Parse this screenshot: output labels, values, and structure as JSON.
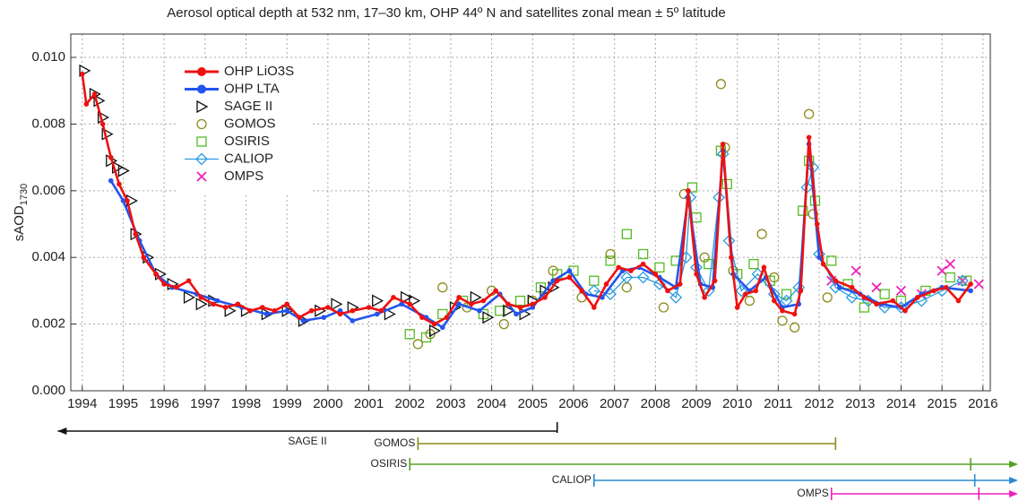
{
  "chart_data": {
    "type": "scatter",
    "title": "Aerosol optical depth at 532 nm, 17–30 km, OHP 44º N and satellites zonal mean ± 5º latitude",
    "ylabel": "sAOD",
    "ylabel_sub": "1730",
    "xlim": [
      1993.72,
      2016.18
    ],
    "ylim": [
      0,
      0.0107
    ],
    "xticks": [
      1994,
      1995,
      1996,
      1997,
      1998,
      1999,
      2000,
      2001,
      2002,
      2003,
      2004,
      2005,
      2006,
      2007,
      2008,
      2009,
      2010,
      2011,
      2012,
      2013,
      2014,
      2015,
      2016
    ],
    "yticks": [
      {
        "value": 0,
        "label": "0.000"
      },
      0.002,
      0.004,
      0.006,
      0.008,
      {
        "value": 0.01,
        "label": "0.010"
      }
    ],
    "grid": true,
    "legend": "upper left",
    "series": [
      {
        "name": "OHP LiO3S",
        "color": "#ee1111",
        "marker": "dot",
        "line": true,
        "x": [
          1994.0,
          1994.1,
          1994.3,
          1994.5,
          1994.7,
          1994.9,
          1995.1,
          1995.3,
          1995.5,
          1995.8,
          1996.0,
          1996.3,
          1996.6,
          1996.9,
          1997.2,
          1997.5,
          1997.8,
          1998.1,
          1998.4,
          1998.7,
          1999.0,
          1999.3,
          1999.6,
          2000.0,
          2000.3,
          2000.6,
          2001.0,
          2001.3,
          2001.6,
          2002.0,
          2002.3,
          2002.6,
          2002.9,
          2003.2,
          2003.5,
          2003.8,
          2004.1,
          2004.4,
          2004.7,
          2005.0,
          2005.3,
          2005.6,
          2005.9,
          2006.2,
          2006.5,
          2006.8,
          2007.1,
          2007.4,
          2007.7,
          2008.0,
          2008.3,
          2008.6,
          2008.8,
          2009.0,
          2009.2,
          2009.45,
          2009.65,
          2009.85,
          2010.0,
          2010.2,
          2010.45,
          2010.65,
          2010.9,
          2011.1,
          2011.4,
          2011.55,
          2011.75,
          2011.95,
          2012.1,
          2012.4,
          2012.8,
          2013.1,
          2013.4,
          2013.8,
          2014.1,
          2014.4,
          2014.8,
          2015.1,
          2015.4,
          2015.7
        ],
        "values": [
          0.0095,
          0.0086,
          0.0089,
          0.008,
          0.007,
          0.0062,
          0.0057,
          0.0047,
          0.004,
          0.0035,
          0.0032,
          0.0031,
          0.0033,
          0.0028,
          0.0026,
          0.0025,
          0.0026,
          0.0024,
          0.0025,
          0.0024,
          0.0026,
          0.0022,
          0.0024,
          0.0025,
          0.0023,
          0.0024,
          0.0025,
          0.0024,
          0.0028,
          0.0026,
          0.0022,
          0.002,
          0.0022,
          0.0028,
          0.0026,
          0.0027,
          0.003,
          0.0026,
          0.0025,
          0.0026,
          0.0028,
          0.0033,
          0.0034,
          0.003,
          0.0025,
          0.0032,
          0.0037,
          0.0036,
          0.0038,
          0.0035,
          0.003,
          0.0032,
          0.006,
          0.0035,
          0.0028,
          0.0033,
          0.0074,
          0.004,
          0.0025,
          0.0029,
          0.003,
          0.0037,
          0.0027,
          0.0024,
          0.0023,
          0.003,
          0.0076,
          0.005,
          0.0038,
          0.0033,
          0.0031,
          0.0028,
          0.0026,
          0.0027,
          0.0024,
          0.0028,
          0.003,
          0.0031,
          0.0027,
          0.0032
        ]
      },
      {
        "name": "OHP LTA",
        "color": "#2255ee",
        "marker": "dot",
        "line": true,
        "x": [
          1994.7,
          1995.0,
          1995.4,
          1995.8,
          1996.2,
          1996.8,
          1997.3,
          1997.9,
          1998.5,
          1999.0,
          1999.4,
          1999.9,
          2000.3,
          2000.6,
          2001.2,
          2001.8,
          2002.4,
          2002.8,
          2003.2,
          2003.7,
          2004.2,
          2004.6,
          2005.0,
          2005.5,
          2005.9,
          2006.3,
          2006.7,
          2007.2,
          2007.6,
          2008.1,
          2008.5,
          2008.8,
          2009.1,
          2009.4,
          2009.65,
          2009.9,
          2010.3,
          2010.7,
          2011.1,
          2011.5,
          2011.75,
          2012.0,
          2012.5,
          2013.0,
          2013.5,
          2014.0,
          2014.5,
          2015.0,
          2015.7
        ],
        "values": [
          0.0063,
          0.0057,
          0.0045,
          0.0035,
          0.0031,
          0.0029,
          0.0027,
          0.0025,
          0.0023,
          0.0024,
          0.0021,
          0.0022,
          0.0024,
          0.0021,
          0.0023,
          0.0026,
          0.0022,
          0.0019,
          0.0026,
          0.0024,
          0.0029,
          0.0023,
          0.0025,
          0.0033,
          0.0036,
          0.0029,
          0.0028,
          0.0036,
          0.0037,
          0.0034,
          0.0031,
          0.0058,
          0.0032,
          0.0031,
          0.0072,
          0.0035,
          0.003,
          0.0034,
          0.0025,
          0.0026,
          0.0074,
          0.004,
          0.0031,
          0.0029,
          0.0026,
          0.0025,
          0.0029,
          0.0031,
          0.003
        ]
      },
      {
        "name": "SAGE II",
        "color": "#111111",
        "marker": "triangle",
        "line": false,
        "x": [
          1994.05,
          1994.3,
          1994.4,
          1994.5,
          1994.6,
          1994.7,
          1994.85,
          1995.0,
          1995.2,
          1995.3,
          1995.6,
          1995.9,
          1996.2,
          1996.6,
          1996.9,
          1997.2,
          1997.6,
          1998.0,
          1998.5,
          1999.0,
          1999.4,
          1999.8,
          2000.2,
          2000.6,
          2001.2,
          2001.5,
          2001.9,
          2002.1,
          2002.6,
          2003.1,
          2003.6,
          2003.9,
          2004.4,
          2004.8,
          2005.0,
          2005.3,
          2005.5
        ],
        "values": [
          0.0096,
          0.0089,
          0.0087,
          0.0082,
          0.0077,
          0.0069,
          0.0067,
          0.0066,
          0.0057,
          0.0047,
          0.004,
          0.0035,
          0.0032,
          0.0028,
          0.0026,
          0.0027,
          0.0024,
          0.0024,
          0.0023,
          0.0024,
          0.0021,
          0.0024,
          0.0026,
          0.0025,
          0.0027,
          0.0023,
          0.0028,
          0.0027,
          0.0018,
          0.0025,
          0.0028,
          0.0022,
          0.0024,
          0.0023,
          0.0027,
          0.003,
          0.0031
        ]
      },
      {
        "name": "GOMOS",
        "color": "#8a8a1a",
        "marker": "circle",
        "line": false,
        "x": [
          2002.2,
          2002.5,
          2002.8,
          2003.4,
          2004.0,
          2004.3,
          2005.0,
          2005.5,
          2006.2,
          2006.9,
          2007.3,
          2008.2,
          2008.7,
          2009.2,
          2009.6,
          2009.7,
          2009.9,
          2010.3,
          2010.6,
          2010.9,
          2011.1,
          2011.4,
          2011.75,
          2011.85,
          2012.2
        ],
        "values": [
          0.0014,
          0.0017,
          0.0031,
          0.0025,
          0.003,
          0.002,
          0.0027,
          0.0036,
          0.0028,
          0.0041,
          0.0031,
          0.0025,
          0.0059,
          0.004,
          0.0092,
          0.0073,
          0.0036,
          0.0027,
          0.0047,
          0.0034,
          0.0021,
          0.0019,
          0.0083,
          0.0053,
          0.0028
        ]
      },
      {
        "name": "OSIRIS",
        "color": "#55bb22",
        "marker": "square",
        "line": false,
        "x": [
          2002.0,
          2002.4,
          2002.8,
          2003.3,
          2003.8,
          2004.2,
          2004.7,
          2005.2,
          2005.6,
          2006.0,
          2006.5,
          2006.9,
          2007.3,
          2007.7,
          2008.1,
          2008.5,
          2008.9,
          2009.0,
          2009.3,
          2009.6,
          2009.75,
          2010.0,
          2010.4,
          2010.8,
          2011.2,
          2011.6,
          2011.75,
          2011.9,
          2012.3,
          2012.7,
          2013.1,
          2013.6,
          2014.0,
          2014.6,
          2015.2,
          2015.6
        ],
        "values": [
          0.0017,
          0.0016,
          0.0023,
          0.0027,
          0.0023,
          0.0024,
          0.0027,
          0.0031,
          0.0035,
          0.0036,
          0.0033,
          0.0039,
          0.0047,
          0.0041,
          0.0037,
          0.0039,
          0.0061,
          0.0052,
          0.0038,
          0.0072,
          0.0062,
          0.0035,
          0.0038,
          0.0033,
          0.0029,
          0.0054,
          0.0069,
          0.0057,
          0.0039,
          0.0032,
          0.0025,
          0.0029,
          0.0027,
          0.003,
          0.0034,
          0.0033
        ]
      },
      {
        "name": "CALIOP",
        "color": "#2a9be0",
        "marker": "diamond",
        "line": true,
        "x": [
          2006.5,
          2006.9,
          2007.3,
          2007.7,
          2008.1,
          2008.5,
          2008.75,
          2008.85,
          2009.0,
          2009.3,
          2009.55,
          2009.65,
          2009.8,
          2010.1,
          2010.5,
          2010.9,
          2011.2,
          2011.5,
          2011.7,
          2011.85,
          2012.0,
          2012.4,
          2012.8,
          2013.2,
          2013.6,
          2014.0,
          2014.5,
          2015.0,
          2015.5
        ],
        "values": [
          0.003,
          0.0029,
          0.0034,
          0.0034,
          0.0032,
          0.0028,
          0.004,
          0.0058,
          0.0037,
          0.003,
          0.0058,
          0.0071,
          0.0045,
          0.003,
          0.0035,
          0.0029,
          0.0027,
          0.0031,
          0.0061,
          0.0067,
          0.0041,
          0.0031,
          0.0028,
          0.0027,
          0.0025,
          0.0025,
          0.0027,
          0.003,
          0.0033
        ]
      },
      {
        "name": "OMPS",
        "color": "#ee22bb",
        "marker": "cross",
        "line": false,
        "x": [
          2012.3,
          2012.9,
          2013.4,
          2014.0,
          2014.5,
          2015.0,
          2015.2,
          2015.5,
          2015.9
        ],
        "values": [
          0.0033,
          0.0036,
          0.0031,
          0.003,
          0.0029,
          0.0036,
          0.0038,
          0.0033,
          0.0032
        ]
      }
    ],
    "coverage": [
      {
        "name": "SAGE II",
        "color": "#111111",
        "start": 1993.4,
        "end": 2005.6,
        "arrow": "left"
      },
      {
        "name": "GOMOS",
        "color": "#8a8a1a",
        "start": 2002.2,
        "end": 2012.4,
        "arrow": "none"
      },
      {
        "name": "OSIRIS",
        "color": "#55a022",
        "start": 2002.0,
        "end": 2015.7,
        "arrow": "right"
      },
      {
        "name": "CALIOP",
        "color": "#2a8bd0",
        "start": 2006.5,
        "end": 2015.8,
        "arrow": "right"
      },
      {
        "name": "OMPS",
        "color": "#ee22bb",
        "start": 2012.3,
        "end": 2015.9,
        "arrow": "right"
      }
    ]
  }
}
